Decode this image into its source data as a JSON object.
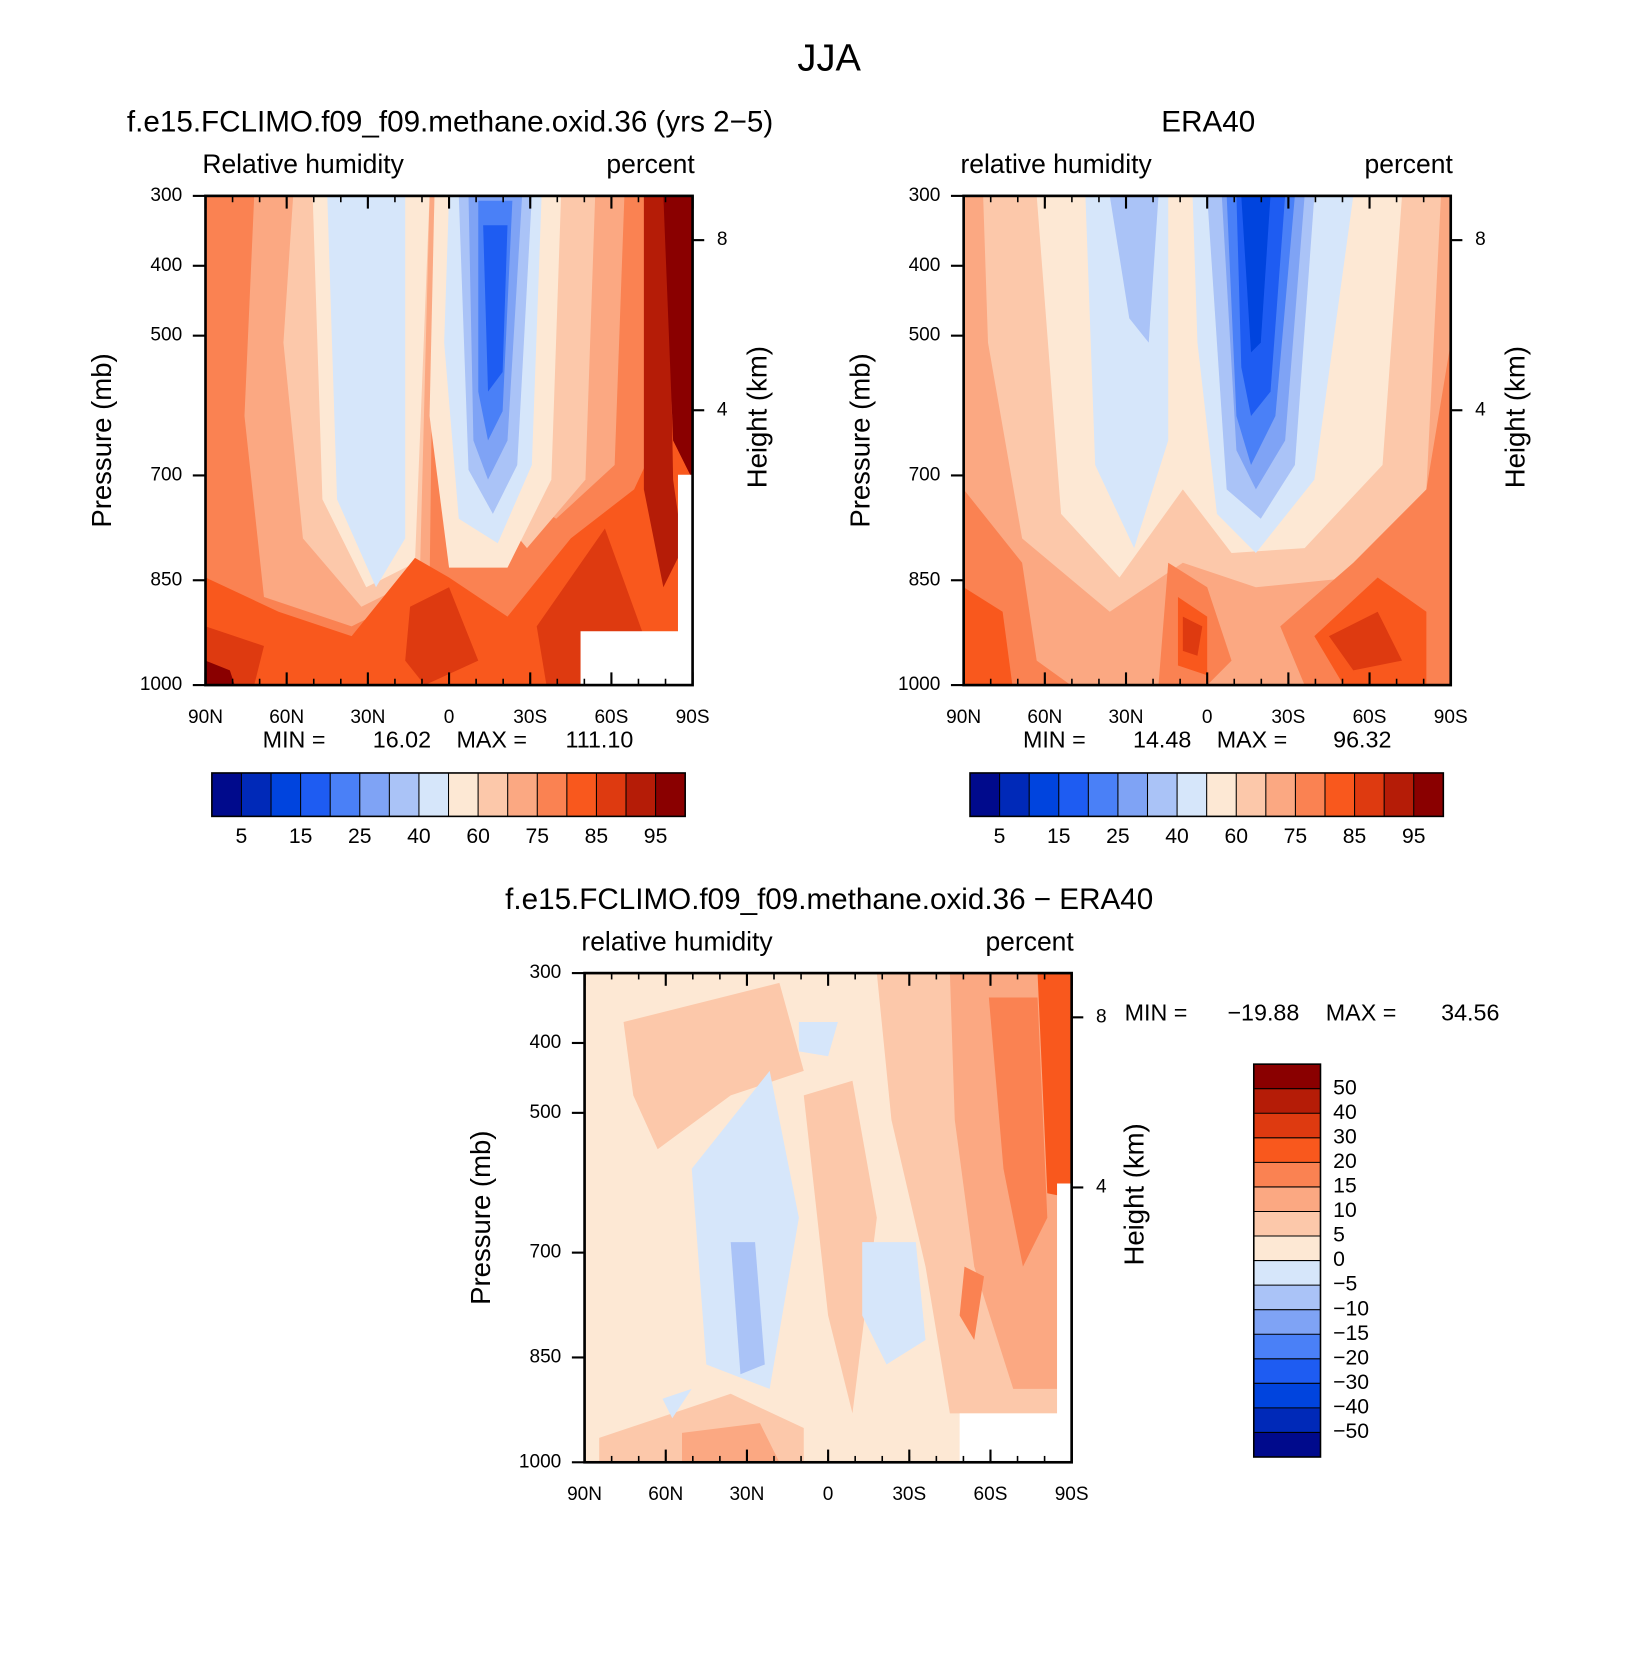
{
  "title": "JJA",
  "chart_data": [
    {
      "type": "contour",
      "title": "f.e15.FCLIMO.f09_f09.methane.oxid.36 (yrs 2−5)",
      "left_label": "Relative humidity",
      "right_label": "percent",
      "ylabel": "Pressure (mb)",
      "y2label": "Height (km)",
      "xlim": [
        90,
        -90
      ],
      "xticks": [
        {
          "value": 90,
          "label": "90N"
        },
        {
          "value": 60,
          "label": "60N"
        },
        {
          "value": 30,
          "label": "30N"
        },
        0,
        {
          "value": -30,
          "label": "30S"
        },
        {
          "value": -60,
          "label": "60S"
        },
        {
          "value": -90,
          "label": "90S"
        }
      ],
      "ylim": [
        1000,
        300
      ],
      "yticks": [
        300,
        400,
        500,
        700,
        850,
        1000
      ],
      "y2ticks": [
        8,
        4
      ],
      "min_label": "MIN =",
      "min": 16.02,
      "max_label": "MAX =",
      "max": {
        "value": 111.1,
        "label": "111.10"
      },
      "colorbar": {
        "orientation": "horizontal",
        "levels": [
          5,
          15,
          25,
          40,
          60,
          75,
          85,
          95
        ],
        "colors": [
          "#000a8c",
          "#0029b8",
          "#0044de",
          "#1e5cf2",
          "#4a80f7",
          "#7fa3f5",
          "#aac3f7",
          "#d6e6fa",
          "#fde8d4",
          "#fcc8aa",
          "#fba882",
          "#fa8252",
          "#f9581d",
          "#de3a10",
          "#b51c07",
          "#8a0000"
        ]
      }
    },
    {
      "type": "contour",
      "title": "ERA40",
      "left_label": "relative humidity",
      "right_label": "percent",
      "ylabel": "Pressure (mb)",
      "y2label": "Height (km)",
      "xlim": [
        90,
        -90
      ],
      "xticks": [
        {
          "value": 90,
          "label": "90N"
        },
        {
          "value": 60,
          "label": "60N"
        },
        {
          "value": 30,
          "label": "30N"
        },
        0,
        {
          "value": -30,
          "label": "30S"
        },
        {
          "value": -60,
          "label": "60S"
        },
        {
          "value": -90,
          "label": "90S"
        }
      ],
      "ylim": [
        1000,
        300
      ],
      "yticks": [
        300,
        400,
        500,
        700,
        850,
        1000
      ],
      "y2ticks": [
        8,
        4
      ],
      "min_label": "MIN =",
      "min": 14.48,
      "max_label": "MAX =",
      "max": 96.32,
      "colorbar": {
        "orientation": "horizontal",
        "levels": [
          5,
          15,
          25,
          40,
          60,
          75,
          85,
          95
        ],
        "colors": [
          "#000a8c",
          "#0029b8",
          "#0044de",
          "#1e5cf2",
          "#4a80f7",
          "#7fa3f5",
          "#aac3f7",
          "#d6e6fa",
          "#fde8d4",
          "#fcc8aa",
          "#fba882",
          "#fa8252",
          "#f9581d",
          "#de3a10",
          "#b51c07",
          "#8a0000"
        ]
      }
    },
    {
      "type": "contour",
      "title": "f.e15.FCLIMO.f09_f09.methane.oxid.36 − ERA40",
      "left_label": "relative humidity",
      "right_label": "percent",
      "ylabel": "Pressure (mb)",
      "y2label": "Height (km)",
      "xlim": [
        90,
        -90
      ],
      "xticks": [
        {
          "value": 90,
          "label": "90N"
        },
        {
          "value": 60,
          "label": "60N"
        },
        {
          "value": 30,
          "label": "30N"
        },
        0,
        {
          "value": -30,
          "label": "30S"
        },
        {
          "value": -60,
          "label": "60S"
        },
        {
          "value": -90,
          "label": "90S"
        }
      ],
      "ylim": [
        1000,
        300
      ],
      "yticks": [
        300,
        400,
        500,
        700,
        850,
        1000
      ],
      "y2ticks": [
        8,
        4
      ],
      "min_label": "MIN =",
      "min": {
        "value": -19.88,
        "label": "−19.88"
      },
      "max_label": "MAX =",
      "max": 34.56,
      "colorbar": {
        "orientation": "vertical",
        "levels": [
          50,
          40,
          30,
          20,
          15,
          10,
          5,
          0,
          {
            "value": -5,
            "label": "−5"
          },
          {
            "value": -10,
            "label": "−10"
          },
          {
            "value": -15,
            "label": "−15"
          },
          {
            "value": -20,
            "label": "−20"
          },
          {
            "value": -30,
            "label": "−30"
          },
          {
            "value": -40,
            "label": "−40"
          },
          {
            "value": -50,
            "label": "−50"
          }
        ],
        "colors": [
          "#8a0000",
          "#b51c07",
          "#de3a10",
          "#f9581d",
          "#fa8252",
          "#fba882",
          "#fcc8aa",
          "#fde8d4",
          "#d6e6fa",
          "#aac3f7",
          "#7fa3f5",
          "#4a80f7",
          "#1e5cf2",
          "#0044de",
          "#0029b8",
          "#000a8c"
        ]
      }
    }
  ]
}
